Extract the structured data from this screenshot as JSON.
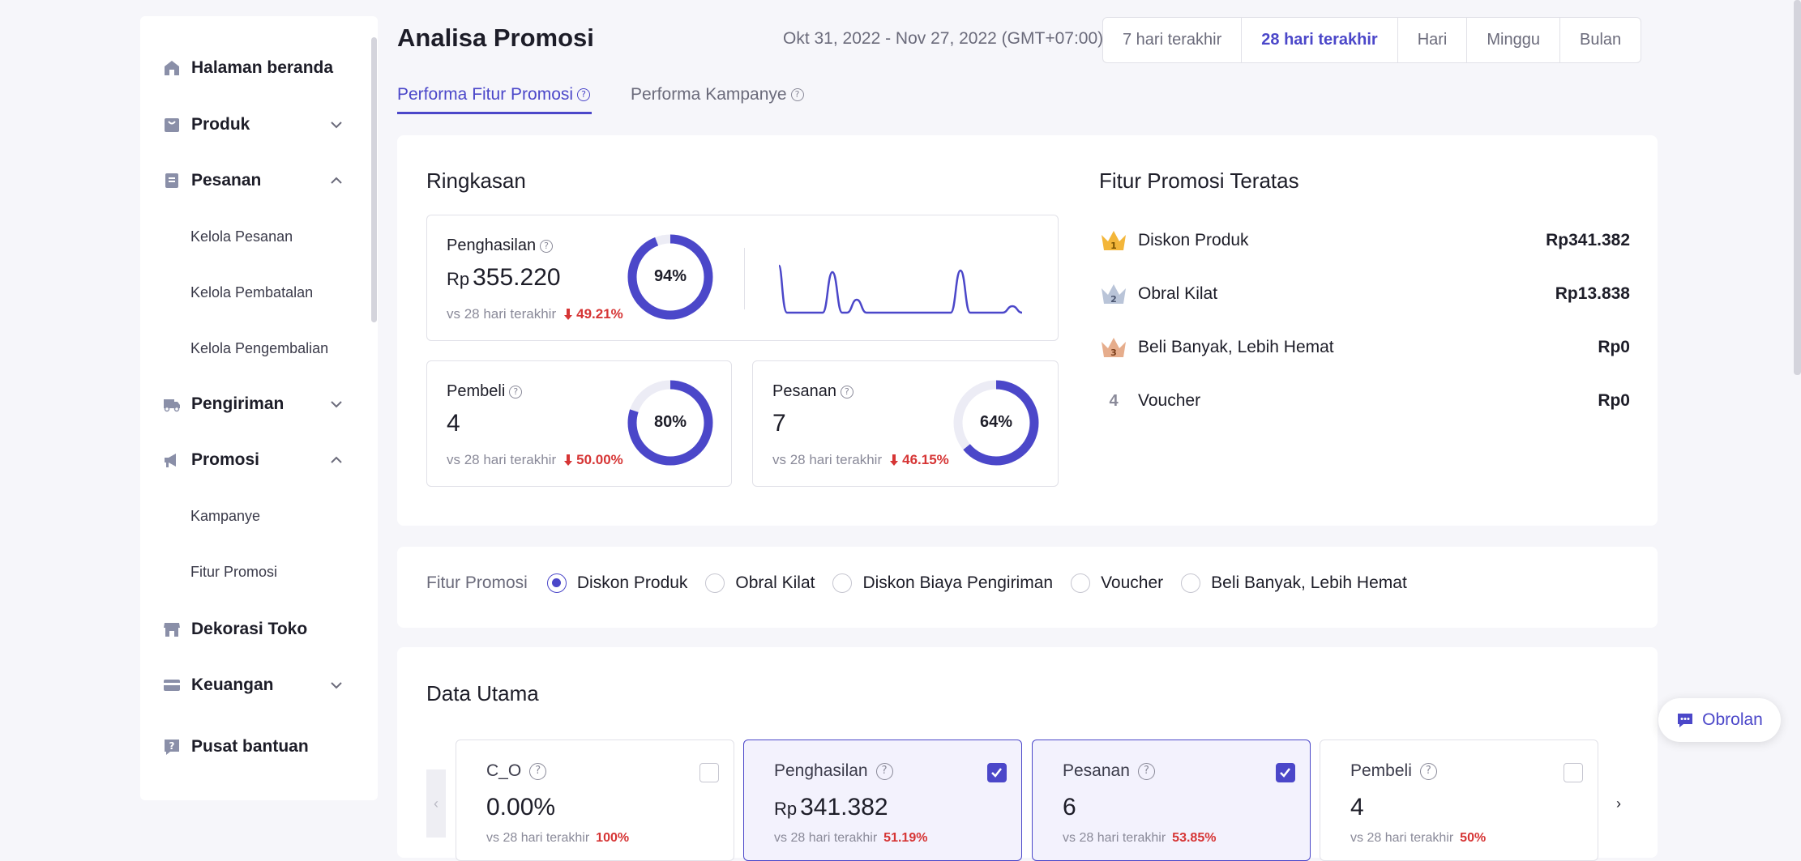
{
  "sidebar": {
    "items": [
      {
        "label": "Halaman beranda",
        "icon": "home-icon"
      },
      {
        "label": "Produk",
        "icon": "bag-icon"
      },
      {
        "label": "Pesanan",
        "icon": "document-icon"
      },
      {
        "label": "Pengiriman",
        "icon": "truck-icon"
      },
      {
        "label": "Promosi",
        "icon": "megaphone-icon"
      },
      {
        "label": "Dekorasi Toko",
        "icon": "store-icon"
      },
      {
        "label": "Keuangan",
        "icon": "card-icon"
      },
      {
        "label": "Pusat bantuan",
        "icon": "help-icon"
      }
    ],
    "pesanan_sub": [
      "Kelola Pesanan",
      "Kelola Pembatalan",
      "Kelola Pengembalian"
    ],
    "promosi_sub": [
      "Kampanye",
      "Fitur Promosi"
    ]
  },
  "header": {
    "title": "Analisa Promosi",
    "date_range": "Okt 31, 2022 - Nov 27, 2022 (GMT+07:00)",
    "ranges": [
      "7 hari terakhir",
      "28 hari terakhir",
      "Hari",
      "Minggu",
      "Bulan"
    ],
    "active_range": "28 hari terakhir"
  },
  "tabs": [
    {
      "label": "Performa Fitur Promosi",
      "active": true
    },
    {
      "label": "Performa Kampanye",
      "active": false
    }
  ],
  "summary": {
    "title": "Ringkasan",
    "penghasilan": {
      "label": "Penghasilan",
      "currency": "Rp",
      "value": "355.220",
      "compare": "vs 28 hari terakhir",
      "change": "49.21%",
      "donut": "94%",
      "donut_fraction": 0.94
    },
    "pembeli": {
      "label": "Pembeli",
      "value": "4",
      "compare": "vs 28 hari terakhir",
      "change": "50.00%",
      "donut": "80%",
      "donut_fraction": 0.8
    },
    "pesanan": {
      "label": "Pesanan",
      "value": "7",
      "compare": "vs 28 hari terakhir",
      "change": "46.15%",
      "donut": "64%",
      "donut_fraction": 0.64
    },
    "accent_color": "#4b47c9",
    "down_color": "#d63535"
  },
  "top_features": {
    "title": "Fitur Promosi Teratas",
    "items": [
      {
        "rank": "1",
        "name": "Diskon Produk",
        "value": "Rp341.382"
      },
      {
        "rank": "2",
        "name": "Obral Kilat",
        "value": "Rp13.838"
      },
      {
        "rank": "3",
        "name": "Beli Banyak, Lebih Hemat",
        "value": "Rp0"
      },
      {
        "rank": "4",
        "name": "Voucher",
        "value": "Rp0"
      }
    ]
  },
  "filter": {
    "label": "Fitur Promosi",
    "options": [
      "Diskon Produk",
      "Obral Kilat",
      "Diskon Biaya Pengiriman",
      "Voucher",
      "Beli Banyak, Lebih Hemat"
    ],
    "selected": "Diskon Produk"
  },
  "main_data": {
    "title": "Data Utama",
    "cards": [
      {
        "label": "C_O",
        "currency": "",
        "value": "0.00%",
        "compare": "vs 28 hari terakhir",
        "change": "100%",
        "checked": false
      },
      {
        "label": "Penghasilan",
        "currency": "Rp",
        "value": "341.382",
        "compare": "vs 28 hari terakhir",
        "change": "51.19%",
        "checked": true
      },
      {
        "label": "Pesanan",
        "currency": "",
        "value": "6",
        "compare": "vs 28 hari terakhir",
        "change": "53.85%",
        "checked": true
      },
      {
        "label": "Pembeli",
        "currency": "",
        "value": "4",
        "compare": "vs 28 hari terakhir",
        "change": "50%",
        "checked": false
      }
    ]
  },
  "chat": {
    "label": "Obrolan"
  }
}
